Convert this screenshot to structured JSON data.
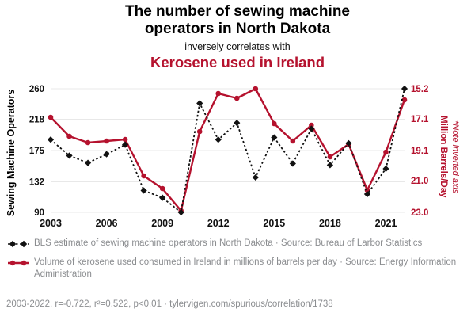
{
  "title": {
    "line1": "The number of sewing machine",
    "line2": "operators in North Dakota",
    "connector": "inversely correlates with",
    "subtitle_red": "Kerosene used in Ireland"
  },
  "colors": {
    "accent_red": "#b5122e",
    "series_black": "#111111",
    "legend_gray": "#8b8d90",
    "grid": "#e8e8e8"
  },
  "axes": {
    "left_label": "Sewing Machine Operators",
    "right_label": "Million Barrels/Day",
    "right_note": "*Note inverted axis",
    "left_ticks": [
      90,
      132,
      175,
      218,
      260
    ],
    "right_tick_labels": [
      "15.2",
      "17.1",
      "19.1",
      "21.0",
      "23.0"
    ],
    "x_ticks": [
      2003,
      2006,
      2009,
      2012,
      2015,
      2018,
      2021
    ]
  },
  "chart_data": {
    "type": "line",
    "x": [
      2003,
      2004,
      2005,
      2006,
      2007,
      2008,
      2009,
      2010,
      2011,
      2012,
      2013,
      2014,
      2015,
      2016,
      2017,
      2018,
      2019,
      2020,
      2021,
      2022
    ],
    "left_range": [
      90,
      260
    ],
    "right_range": [
      15.2,
      23.0
    ],
    "right_axis_inverted": true,
    "grid": "horizontal-faint",
    "series": [
      {
        "name": "BLS estimate of sewing machine operators in North Dakota",
        "axis": "left",
        "color": "#111111",
        "style": "dotted-diamond",
        "values": [
          190,
          168,
          158,
          170,
          183,
          120,
          110,
          90,
          240,
          190,
          213,
          138,
          193,
          157,
          205,
          155,
          185,
          115,
          150,
          260
        ]
      },
      {
        "name": "Volume of kerosene consumed in Ireland (million barrels/day)",
        "axis": "right-inverted",
        "color": "#b5122e",
        "style": "solid-circle",
        "values": [
          17.0,
          18.2,
          18.6,
          18.5,
          18.4,
          20.7,
          21.5,
          22.9,
          17.9,
          15.5,
          15.8,
          15.2,
          17.4,
          18.5,
          17.5,
          19.5,
          18.7,
          21.6,
          19.2,
          15.9
        ]
      }
    ]
  },
  "legend": [
    {
      "text": "BLS estimate of sewing machine operators in North Dakota · Source: Bureau of Larbor Statistics"
    },
    {
      "text": "Volume of kerosene used consumed in Ireland in millions of barrels per day · Source: Energy Information Administration"
    }
  ],
  "footer": "2003-2022, r=-0.722, r²=0.522, p<0.01 · tylervigen.com/spurious/correlation/1738"
}
